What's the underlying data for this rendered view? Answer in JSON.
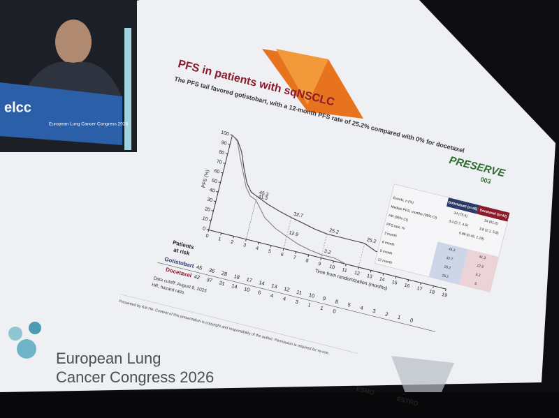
{
  "slide": {
    "title": "PFS in patients with sqNSCLC",
    "subtitle": "The PFS tail favored gotistobart, with a 12-month PFS rate of 25.2% compared with 0% for docetaxel",
    "logo": "PRESERVE",
    "logo_sub": "003",
    "chart_data": {
      "type": "line",
      "ylabel": "PFS (%)",
      "xlabel": "Time from randomization (months)",
      "xlim": [
        0,
        19
      ],
      "xticks": [
        0,
        1,
        2,
        3,
        4,
        5,
        6,
        7,
        8,
        9,
        10,
        11,
        12,
        13,
        14,
        15,
        16,
        17,
        18,
        19
      ],
      "ylim": [
        0,
        100
      ],
      "yticks": [
        0,
        10,
        20,
        30,
        40,
        50,
        60,
        70,
        80,
        90,
        100
      ],
      "series": [
        {
          "name": "Gotistobart",
          "color": "#4a4a4a",
          "label_color": "#2b3a67",
          "x": [
            0,
            0.5,
            1,
            1.5,
            2,
            2.5,
            3,
            4,
            5,
            6,
            7,
            8,
            9,
            12,
            13,
            15
          ],
          "values": [
            100,
            96,
            86,
            70,
            56,
            48,
            45.3,
            40,
            36,
            32.7,
            30,
            27,
            25.2,
            25.2,
            20,
            20
          ]
        },
        {
          "name": "Docetaxel",
          "color": "#8a8a8a",
          "label_color": "#8b1a2b",
          "x": [
            0,
            0.5,
            1,
            1.5,
            2,
            2.5,
            3,
            4,
            5,
            6,
            7,
            8,
            9,
            10,
            11
          ],
          "values": [
            100,
            95,
            80,
            66,
            52,
            44,
            41.3,
            26,
            18,
            12.9,
            8,
            5,
            3.2,
            3.2,
            0
          ]
        }
      ],
      "annotations": [
        {
          "x": 3,
          "y": 45.3
        },
        {
          "x": 3,
          "y": 41.3
        },
        {
          "x": 6,
          "y": 32.7
        },
        {
          "x": 6,
          "y": 12.9
        },
        {
          "x": 9,
          "y": 25.2
        },
        {
          "x": 9,
          "y": 3.2
        },
        {
          "x": 12,
          "y": 25.2
        }
      ]
    },
    "risk": {
      "title": [
        "Patients",
        "at risk"
      ],
      "rows": [
        {
          "name": "Gotistobart",
          "counts": [
            45,
            36,
            28,
            18,
            17,
            14,
            13,
            12,
            11,
            10,
            9,
            8,
            5,
            4,
            3,
            2,
            1,
            0
          ]
        },
        {
          "name": "Docetaxel",
          "counts": [
            42,
            37,
            31,
            14,
            10,
            6,
            4,
            4,
            3,
            1,
            1,
            0
          ]
        }
      ]
    },
    "table": {
      "columns": [
        "Gotistobart (n=45)",
        "Docetaxel (n=42)"
      ],
      "rows": [
        {
          "label": "Events, n (%)",
          "cells": [
            "34 (75.6)",
            "34 (81.0)"
          ]
        },
        {
          "label": "Median PFS, months (95% CI)",
          "cells": [
            "3.4 (2.7, 4.5)",
            "3.8 (2.1, 5.8)"
          ]
        },
        {
          "label": "HR (95% CI)",
          "cells": [
            "0.88 (0.45, 1.18)"
          ]
        },
        {
          "label": "PFS rate, %",
          "cells": []
        },
        {
          "label": "3 month",
          "cells": [
            "45.3",
            "41.3"
          ]
        },
        {
          "label": "6 month",
          "cells": [
            "32.7",
            "12.9"
          ]
        },
        {
          "label": "9 month",
          "cells": [
            "25.2",
            "3.2"
          ]
        },
        {
          "label": "12 month",
          "cells": [
            "25.2",
            "0"
          ]
        }
      ]
    },
    "footnotes": [
      "Data cutoff: August 8, 2025",
      "HR, hazard ratio."
    ],
    "presenter": "Presented by Kai He. Content of this presentation is copyright and responsibility of the author. Permission is required for re-use.",
    "sponsors": [
      "ESMO",
      "ESTRO"
    ],
    "branding": {
      "inset_logo": "elcc",
      "inset_name": "European Lung Cancer Congress 2026",
      "line1": "European Lung",
      "line2": "Cancer Congress 2026"
    }
  }
}
